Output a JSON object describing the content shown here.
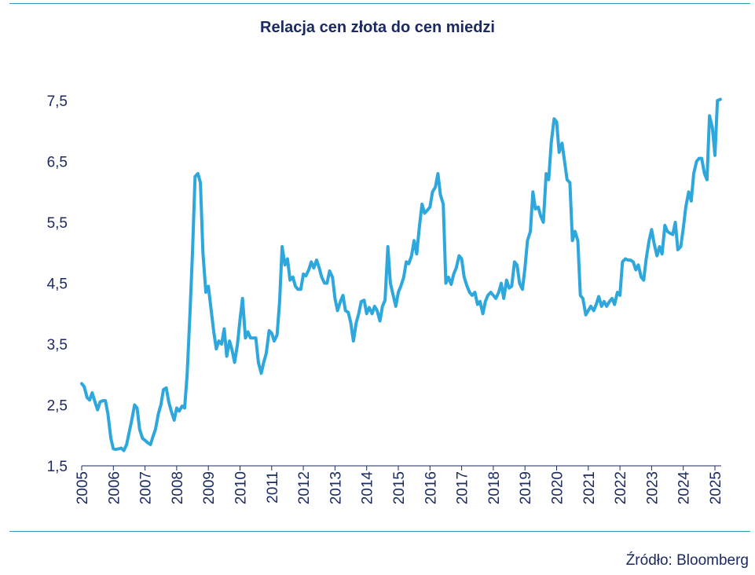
{
  "chart_data": {
    "type": "line",
    "title": "Relacja cen złota do cen miedzi",
    "source": "Źródło: Bloomberg",
    "xlabel": "",
    "ylabel": "",
    "ylim": [
      1.5,
      7.5
    ],
    "y_ticks": [
      "1,5",
      "2,5",
      "3,5",
      "4,5",
      "5,5",
      "6,5",
      "7,5"
    ],
    "y_tick_values": [
      1.5,
      2.5,
      3.5,
      4.5,
      5.5,
      6.5,
      7.5
    ],
    "xlim": [
      2005.0,
      2025.25
    ],
    "x_ticks": [
      "2005",
      "2006",
      "2007",
      "2008",
      "2009",
      "2010",
      "2011",
      "2012",
      "2013",
      "2014",
      "2015",
      "2016",
      "2017",
      "2018",
      "2019",
      "2020",
      "2021",
      "2022",
      "2023",
      "2024",
      "2025"
    ],
    "grid": false,
    "color": "#2ea7dc",
    "series": [
      {
        "name": "",
        "x": [
          2005.0,
          2005.08,
          2005.17,
          2005.25,
          2005.33,
          2005.42,
          2005.5,
          2005.58,
          2005.67,
          2005.75,
          2005.83,
          2005.92,
          2006.0,
          2006.08,
          2006.17,
          2006.25,
          2006.33,
          2006.42,
          2006.5,
          2006.58,
          2006.67,
          2006.75,
          2006.83,
          2006.92,
          2007.0,
          2007.08,
          2007.17,
          2007.25,
          2007.33,
          2007.42,
          2007.5,
          2007.58,
          2007.67,
          2007.75,
          2007.83,
          2007.92,
          2008.0,
          2008.08,
          2008.17,
          2008.25,
          2008.33,
          2008.42,
          2008.5,
          2008.58,
          2008.67,
          2008.75,
          2008.83,
          2008.92,
          2009.0,
          2009.08,
          2009.17,
          2009.25,
          2009.33,
          2009.42,
          2009.5,
          2009.58,
          2009.67,
          2009.75,
          2009.83,
          2009.92,
          2010.0,
          2010.08,
          2010.17,
          2010.25,
          2010.33,
          2010.42,
          2010.5,
          2010.58,
          2010.67,
          2010.75,
          2010.83,
          2010.92,
          2011.0,
          2011.08,
          2011.17,
          2011.25,
          2011.33,
          2011.42,
          2011.5,
          2011.58,
          2011.67,
          2011.75,
          2011.83,
          2011.92,
          2012.0,
          2012.08,
          2012.17,
          2012.25,
          2012.33,
          2012.42,
          2012.5,
          2012.58,
          2012.67,
          2012.75,
          2012.83,
          2012.92,
          2013.0,
          2013.08,
          2013.17,
          2013.25,
          2013.33,
          2013.42,
          2013.5,
          2013.58,
          2013.67,
          2013.75,
          2013.83,
          2013.92,
          2014.0,
          2014.08,
          2014.17,
          2014.25,
          2014.33,
          2014.42,
          2014.5,
          2014.58,
          2014.67,
          2014.75,
          2014.83,
          2014.92,
          2015.0,
          2015.08,
          2015.17,
          2015.25,
          2015.33,
          2015.42,
          2015.5,
          2015.58,
          2015.67,
          2015.75,
          2015.83,
          2015.92,
          2016.0,
          2016.08,
          2016.17,
          2016.25,
          2016.33,
          2016.42,
          2016.5,
          2016.58,
          2016.67,
          2016.75,
          2016.83,
          2016.92,
          2017.0,
          2017.08,
          2017.17,
          2017.25,
          2017.33,
          2017.42,
          2017.5,
          2017.58,
          2017.67,
          2017.75,
          2017.83,
          2017.92,
          2018.0,
          2018.08,
          2018.17,
          2018.25,
          2018.33,
          2018.42,
          2018.5,
          2018.58,
          2018.67,
          2018.75,
          2018.83,
          2018.92,
          2019.0,
          2019.08,
          2019.17,
          2019.25,
          2019.33,
          2019.42,
          2019.5,
          2019.58,
          2019.67,
          2019.75,
          2019.83,
          2019.92,
          2020.0,
          2020.08,
          2020.17,
          2020.25,
          2020.33,
          2020.42,
          2020.5,
          2020.58,
          2020.67,
          2020.75,
          2020.83,
          2020.92,
          2021.0,
          2021.08,
          2021.17,
          2021.25,
          2021.33,
          2021.42,
          2021.5,
          2021.58,
          2021.67,
          2021.75,
          2021.83,
          2021.92,
          2022.0,
          2022.08,
          2022.17,
          2022.25,
          2022.33,
          2022.42,
          2022.5,
          2022.58,
          2022.67,
          2022.75,
          2022.83,
          2022.92,
          2023.0,
          2023.08,
          2023.17,
          2023.25,
          2023.33,
          2023.42,
          2023.5,
          2023.58,
          2023.67,
          2023.75,
          2023.83,
          2023.92,
          2024.0,
          2024.08,
          2024.17,
          2024.25,
          2024.33,
          2024.42,
          2024.5,
          2024.58,
          2024.67,
          2024.75,
          2024.83,
          2024.92,
          2025.0,
          2025.08,
          2025.17
        ],
        "values": [
          2.85,
          2.8,
          2.62,
          2.58,
          2.7,
          2.55,
          2.42,
          2.55,
          2.57,
          2.57,
          2.35,
          1.95,
          1.78,
          1.77,
          1.78,
          1.79,
          1.75,
          1.85,
          2.05,
          2.25,
          2.5,
          2.45,
          2.1,
          1.95,
          1.92,
          1.88,
          1.85,
          1.98,
          2.1,
          2.35,
          2.5,
          2.75,
          2.78,
          2.55,
          2.4,
          2.25,
          2.45,
          2.4,
          2.48,
          2.45,
          3.0,
          4.0,
          5.0,
          6.25,
          6.3,
          6.15,
          5.0,
          4.35,
          4.45,
          4.1,
          3.7,
          3.42,
          3.55,
          3.5,
          3.75,
          3.3,
          3.55,
          3.4,
          3.2,
          3.5,
          3.9,
          4.25,
          3.6,
          3.7,
          3.6,
          3.6,
          3.6,
          3.2,
          3.02,
          3.2,
          3.35,
          3.72,
          3.68,
          3.55,
          3.65,
          4.2,
          5.1,
          4.8,
          4.9,
          4.55,
          4.6,
          4.45,
          4.4,
          4.4,
          4.65,
          4.62,
          4.72,
          4.85,
          4.75,
          4.88,
          4.75,
          4.6,
          4.5,
          4.5,
          4.7,
          4.6,
          4.25,
          4.05,
          4.2,
          4.3,
          4.05,
          4.02,
          3.85,
          3.55,
          3.85,
          4.0,
          4.2,
          4.22,
          4.0,
          4.1,
          4.0,
          4.12,
          4.05,
          3.88,
          4.12,
          4.22,
          5.1,
          4.5,
          4.32,
          4.12,
          4.35,
          4.45,
          4.6,
          4.85,
          4.82,
          4.95,
          5.2,
          4.98,
          5.45,
          5.8,
          5.65,
          5.7,
          5.75,
          6.0,
          6.08,
          6.3,
          5.95,
          5.8,
          4.5,
          4.6,
          4.48,
          4.65,
          4.75,
          4.95,
          4.9,
          4.6,
          4.45,
          4.35,
          4.3,
          4.35,
          4.15,
          4.2,
          4.0,
          4.2,
          4.3,
          4.35,
          4.3,
          4.25,
          4.35,
          4.5,
          4.25,
          4.55,
          4.42,
          4.45,
          4.85,
          4.8,
          4.5,
          4.4,
          4.75,
          5.2,
          5.35,
          6.0,
          5.72,
          5.75,
          5.6,
          5.5,
          6.3,
          6.2,
          6.8,
          7.2,
          7.15,
          6.65,
          6.8,
          6.5,
          6.2,
          6.15,
          5.2,
          5.35,
          5.2,
          4.3,
          4.25,
          3.98,
          4.05,
          4.12,
          4.05,
          4.15,
          4.28,
          4.12,
          4.2,
          4.12,
          4.2,
          4.25,
          4.15,
          4.35,
          4.3,
          4.85,
          4.9,
          4.88,
          4.88,
          4.85,
          4.72,
          4.8,
          4.6,
          4.55,
          4.9,
          5.2,
          5.38,
          5.15,
          4.95,
          5.1,
          4.98,
          5.45,
          5.35,
          5.32,
          5.3,
          5.5,
          5.05,
          5.1,
          5.4,
          5.75,
          6.0,
          5.85,
          6.3,
          6.5,
          6.55,
          6.55,
          6.3,
          6.2,
          7.25,
          7.05,
          6.6,
          7.5,
          7.52
        ]
      }
    ]
  }
}
